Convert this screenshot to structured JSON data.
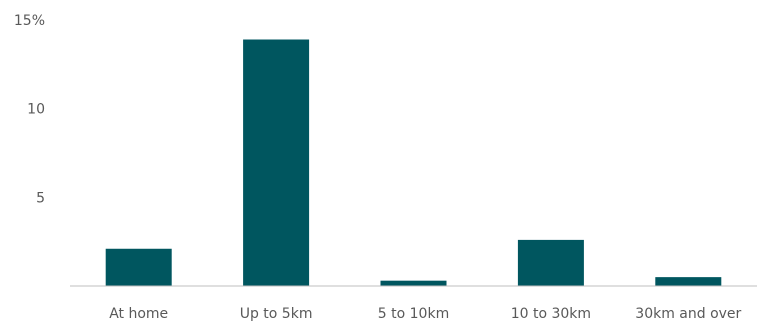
{
  "chart_data": {
    "type": "bar",
    "categories": [
      "At home",
      "Up to 5km",
      "5 to 10km",
      "10 to 30km",
      "30km and over"
    ],
    "values": [
      2.1,
      13.9,
      0.3,
      2.6,
      0.5
    ],
    "y_ticks": [
      "5",
      "10",
      "15%"
    ],
    "y_tick_values": [
      5,
      10,
      15
    ],
    "ylim": [
      0,
      15
    ],
    "grid": false,
    "legend": "none",
    "bar_color": "#00565f",
    "axis_color": "#bfbfbf"
  }
}
